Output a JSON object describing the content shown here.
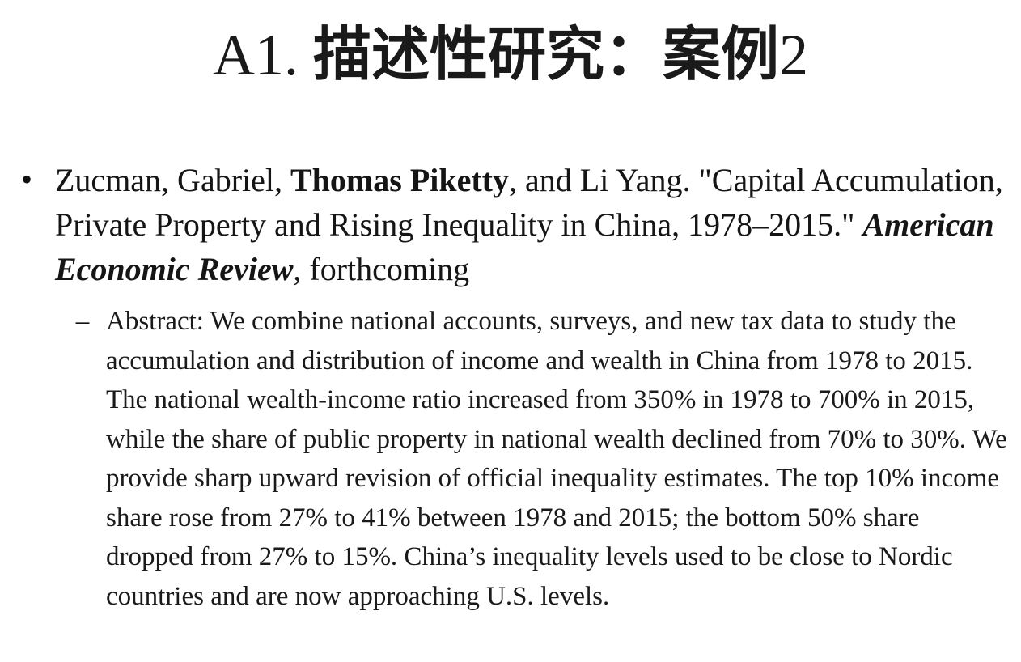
{
  "slide": {
    "title_prefix": "A1. ",
    "title_cjk": "描述性研究：案例",
    "title_suffix": "2"
  },
  "bullet": {
    "marker": "•",
    "authors_lead": "Zucman, Gabriel, ",
    "author_bold": "Thomas Piketty",
    "authors_tail": ", and Li Yang. \"Capital Accumulation, Private Property and Rising Inequality in China, 1978–2015.\" ",
    "journal": "American Economic Review",
    "status": ", forthcoming"
  },
  "sub_bullet": {
    "marker": "–",
    "abstract": "Abstract: We combine national accounts, surveys, and new tax data to study the accumulation and distribution of income and wealth in China from 1978 to 2015. The national wealth-income ratio increased from 350% in 1978 to 700% in 2015, while the share of public property in national wealth declined from 70% to 30%. We provide sharp upward revision of official inequality estimates. The top 10% income share rose from 27% to 41% between 1978 and 2015; the bottom 50% share dropped from 27% to 15%. China’s inequality levels used to be close to Nordic countries and are now approaching U.S. levels."
  }
}
